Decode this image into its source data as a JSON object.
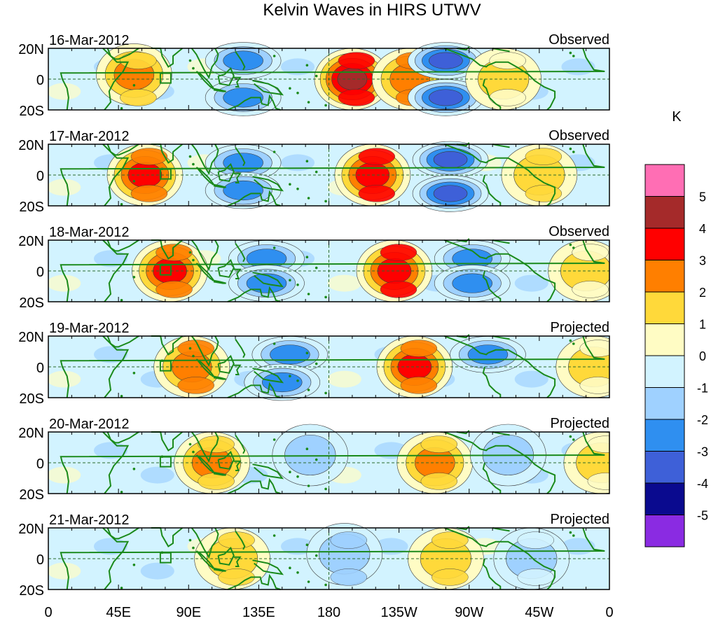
{
  "chart_data": {
    "type": "heatmap",
    "title": "Kelvin Waves in HIRS UTWV",
    "units": "K",
    "x_ticks": [
      "0",
      "45E",
      "90E",
      "135E",
      "180",
      "135W",
      "90W",
      "45W",
      "0"
    ],
    "x_range_deg": [
      0,
      360
    ],
    "y_ticks": [
      "20N",
      "0",
      "20S"
    ],
    "y_range_deg": [
      20,
      -20
    ],
    "colorbar": {
      "label": "K",
      "levels": [
        "5",
        "4",
        "3",
        "2",
        "1",
        "0",
        "-1",
        "-2",
        "-3",
        "-4",
        "-5"
      ],
      "colors": [
        "#ff6eb4",
        "#a52a2a",
        "#ff0000",
        "#ff7f00",
        "#ffd93a",
        "#fffcc4",
        "#d2f3ff",
        "#9fd1ff",
        "#2f8ff0",
        "#3e60d8",
        "#0a0a8f",
        "#8a2be2"
      ]
    },
    "panels": [
      {
        "date": "16-Mar-2012",
        "status": "Observed",
        "anomalies": [
          {
            "lon": 55,
            "lat": 3,
            "value": 2.5
          },
          {
            "lon": 125,
            "lat": 12,
            "value": -3
          },
          {
            "lon": 125,
            "lat": -12,
            "value": -3
          },
          {
            "lon": 195,
            "lat": 0,
            "value": 4.2
          },
          {
            "lon": 232,
            "lat": 0,
            "value": 3
          },
          {
            "lon": 255,
            "lat": 12,
            "value": -3.5
          },
          {
            "lon": 255,
            "lat": -12,
            "value": -3.5
          },
          {
            "lon": 292,
            "lat": 0,
            "value": 1.5
          }
        ]
      },
      {
        "date": "17-Mar-2012",
        "status": "Observed",
        "anomalies": [
          {
            "lon": 62,
            "lat": 0,
            "value": 3.2
          },
          {
            "lon": 125,
            "lat": 8,
            "value": -3
          },
          {
            "lon": 125,
            "lat": -10,
            "value": -3
          },
          {
            "lon": 208,
            "lat": 0,
            "value": 3.8
          },
          {
            "lon": 258,
            "lat": 10,
            "value": -3.8
          },
          {
            "lon": 258,
            "lat": -12,
            "value": -3.8
          },
          {
            "lon": 315,
            "lat": 0,
            "value": 1.8
          }
        ]
      },
      {
        "date": "18-Mar-2012",
        "status": "Observed",
        "anomalies": [
          {
            "lon": 78,
            "lat": 0,
            "value": 3.3
          },
          {
            "lon": 140,
            "lat": 8,
            "value": -2.5
          },
          {
            "lon": 140,
            "lat": -8,
            "value": -2.5
          },
          {
            "lon": 222,
            "lat": 0,
            "value": 3.8
          },
          {
            "lon": 272,
            "lat": 8,
            "value": -3
          },
          {
            "lon": 272,
            "lat": -8,
            "value": -3
          },
          {
            "lon": 345,
            "lat": 0,
            "value": 1.5
          }
        ]
      },
      {
        "date": "19-Mar-2012",
        "status": "Projected",
        "anomalies": [
          {
            "lon": 92,
            "lat": 0,
            "value": 2.8
          },
          {
            "lon": 155,
            "lat": 8,
            "value": -2.3
          },
          {
            "lon": 150,
            "lat": -10,
            "value": -2.3
          },
          {
            "lon": 235,
            "lat": 0,
            "value": 3.5
          },
          {
            "lon": 282,
            "lat": 8,
            "value": -2.3
          },
          {
            "lon": 350,
            "lat": 0,
            "value": 1.5
          }
        ]
      },
      {
        "date": "20-Mar-2012",
        "status": "Projected",
        "anomalies": [
          {
            "lon": 105,
            "lat": 0,
            "value": 2.3
          },
          {
            "lon": 168,
            "lat": 5,
            "value": -1.8
          },
          {
            "lon": 248,
            "lat": 0,
            "value": 2.3
          },
          {
            "lon": 295,
            "lat": 5,
            "value": -1.8
          },
          {
            "lon": 355,
            "lat": 0,
            "value": 1.5
          }
        ]
      },
      {
        "date": "21-Mar-2012",
        "status": "Projected",
        "anomalies": [
          {
            "lon": 118,
            "lat": 0,
            "value": 2
          },
          {
            "lon": 190,
            "lat": 3,
            "value": -2
          },
          {
            "lon": 255,
            "lat": 0,
            "value": 1.8
          },
          {
            "lon": 310,
            "lat": 0,
            "value": -1.5
          }
        ]
      }
    ]
  }
}
